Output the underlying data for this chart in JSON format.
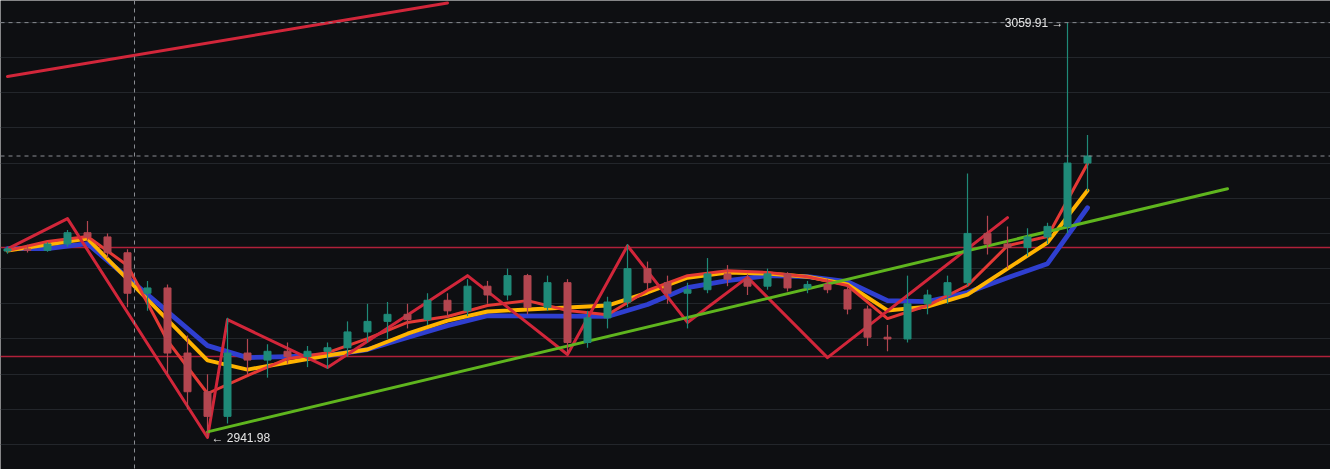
{
  "chart_data": {
    "type": "candlestick",
    "categories": [
      null,
      null,
      null,
      null,
      null,
      null,
      null,
      null,
      null,
      null,
      null,
      null,
      null,
      null,
      null,
      null,
      null,
      null,
      null,
      null,
      null,
      null,
      null,
      null,
      null,
      null,
      null,
      null,
      null,
      null,
      null,
      null,
      null,
      null,
      null,
      null,
      null,
      null,
      null,
      null,
      null,
      null,
      null,
      null,
      null,
      null,
      null,
      null,
      null,
      null,
      null,
      null,
      null,
      null,
      null,
      null,
      null,
      null,
      null,
      null,
      null,
      null
    ],
    "ohlc": [
      [
        2995.0,
        2996.2,
        2994.2,
        2995.6
      ],
      [
        2995.6,
        2996.8,
        2994.6,
        2995.2
      ],
      [
        2995.2,
        2997.5,
        2994.8,
        2997.0
      ],
      [
        2997.0,
        3001.0,
        2996.2,
        3000.2
      ],
      [
        3000.2,
        3003.5,
        2998.0,
        2999.0
      ],
      [
        2999.0,
        3000.0,
        2993.0,
        2994.5
      ],
      [
        2994.5,
        2995.5,
        2979.0,
        2983.0
      ],
      [
        2983.0,
        2986.5,
        2978.0,
        2984.5
      ],
      [
        2984.5,
        2985.5,
        2960.0,
        2966.0
      ],
      [
        2966.0,
        2971.0,
        2950.0,
        2955.0
      ],
      [
        2955.0,
        2960.0,
        2941.98,
        2948.0
      ],
      [
        2948.0,
        2976.0,
        2946.0,
        2966.0
      ],
      [
        2966.0,
        2970.0,
        2960.0,
        2964.0
      ],
      [
        2964.0,
        2968.5,
        2959.0,
        2966.5
      ],
      [
        2966.5,
        2969.0,
        2963.0,
        2965.0
      ],
      [
        2965.0,
        2968.0,
        2962.0,
        2966.5
      ],
      [
        2966.5,
        2969.0,
        2961.5,
        2967.5
      ],
      [
        2967.5,
        2975.0,
        2965.0,
        2972.0
      ],
      [
        2972.0,
        2980.0,
        2969.0,
        2975.0
      ],
      [
        2975.0,
        2980.5,
        2970.0,
        2977.0
      ],
      [
        2977.0,
        2980.0,
        2973.0,
        2975.5
      ],
      [
        2975.5,
        2983.0,
        2974.0,
        2981.0
      ],
      [
        2981.0,
        2983.0,
        2976.0,
        2978.0
      ],
      [
        2978.0,
        2987.0,
        2976.5,
        2985.0
      ],
      [
        2985.0,
        2986.5,
        2980.0,
        2982.5
      ],
      [
        2982.5,
        2990.0,
        2981.0,
        2988.0
      ],
      [
        2988.0,
        2988.5,
        2977.0,
        2979.0
      ],
      [
        2979.0,
        2988.0,
        2978.0,
        2986.0
      ],
      [
        2986.0,
        2987.0,
        2966.0,
        2969.0
      ],
      [
        2969.0,
        2978.0,
        2967.5,
        2976.0
      ],
      [
        2976.0,
        2982.0,
        2973.0,
        2980.5
      ],
      [
        2980.5,
        2997.0,
        2979.0,
        2990.0
      ],
      [
        2990.0,
        2992.0,
        2984.0,
        2986.0
      ],
      [
        2986.0,
        2988.0,
        2980.0,
        2983.0
      ],
      [
        2983.0,
        2986.0,
        2973.0,
        2984.0
      ],
      [
        2984.0,
        2993.0,
        2983.0,
        2988.5
      ],
      [
        2988.5,
        2991.0,
        2985.0,
        2987.0
      ],
      [
        2987.0,
        2988.5,
        2982.5,
        2985.0
      ],
      [
        2985.0,
        2990.0,
        2984.0,
        2988.5
      ],
      [
        2988.5,
        2989.0,
        2983.5,
        2984.5
      ],
      [
        2984.5,
        2986.5,
        2983.0,
        2985.5
      ],
      [
        2985.5,
        2987.0,
        2983.0,
        2984.0
      ],
      [
        2984.0,
        2985.0,
        2977.0,
        2978.5
      ],
      [
        2978.5,
        2979.5,
        2968.0,
        2970.5
      ],
      [
        2970.5,
        2974.0,
        2966.5,
        2970.0
      ],
      [
        2970.0,
        2988.0,
        2969.0,
        2980.0
      ],
      [
        2980.0,
        2984.0,
        2977.0,
        2982.5
      ],
      [
        2982.5,
        2988.0,
        2980.0,
        2986.0
      ],
      [
        2986.0,
        3017.0,
        2985.0,
        3000.0
      ],
      [
        3000.0,
        3005.0,
        2994.0,
        2997.0
      ],
      [
        2997.0,
        3002.0,
        2990.0,
        2996.0
      ],
      [
        2996.0,
        3001.5,
        2993.5,
        2999.0
      ],
      [
        2999.0,
        3003.0,
        2997.0,
        3002.0
      ],
      [
        3002.0,
        3059.91,
        3000.0,
        3020.0
      ],
      [
        3020.0,
        3028.0,
        3012.0,
        3022.0
      ],
      null,
      null,
      null,
      null,
      null,
      null,
      null
    ],
    "series": [
      {
        "type": "line",
        "color": "#2f3fd0",
        "values": [
          2995.7,
          null,
          2995.7,
          null,
          2997.1,
          null,
          null,
          null,
          null,
          null,
          2968.1,
          null,
          2964.7,
          null,
          2965.0,
          null,
          2965.3,
          null,
          2967.0,
          null,
          2970.4,
          null,
          2973.8,
          null,
          2976.6,
          null,
          null,
          null,
          null,
          null,
          2976.4,
          null,
          2979.8,
          null,
          2984.6,
          null,
          2986.6,
          null,
          2988.0,
          null,
          2987.7,
          null,
          2986.3,
          null,
          2980.9,
          null,
          2980.6,
          null,
          2983.2,
          null,
          2987.4,
          null,
          2991.4,
          null,
          3007.3,
          null,
          null,
          null,
          null,
          null,
          null,
          null
        ]
      },
      {
        "type": "line",
        "color": "#ffb300",
        "values": [
          2995.1,
          null,
          2996.8,
          null,
          2998.5,
          null,
          null,
          null,
          null,
          null,
          2963.9,
          null,
          2961.3,
          null,
          2963.3,
          null,
          2965.3,
          null,
          2967.0,
          null,
          2971.5,
          null,
          2975.2,
          null,
          2977.8,
          null,
          null,
          null,
          null,
          null,
          2979.5,
          null,
          2983.2,
          null,
          2987.4,
          null,
          2988.9,
          null,
          2988.6,
          null,
          2987.7,
          null,
          2985.5,
          null,
          2978.1,
          null,
          2979.2,
          null,
          2982.6,
          null,
          2990.0,
          null,
          2997.4,
          null,
          3012.2,
          null,
          null,
          null,
          null,
          null,
          null,
          null
        ]
      },
      {
        "type": "line",
        "color": "#e53935",
        "values": [
          2995.1,
          null,
          2997.7,
          null,
          2999.1,
          null,
          2990.9,
          null,
          2969.5,
          null,
          2954.5,
          null,
          2959.6,
          null,
          2964.4,
          null,
          2966.1,
          null,
          2970.1,
          null,
          2974.7,
          null,
          2976.4,
          null,
          2979.5,
          null,
          2980.9,
          null,
          2978.1,
          null,
          2976.9,
          null,
          2983.8,
          null,
          2988.0,
          null,
          2989.4,
          null,
          2988.9,
          null,
          2987.7,
          null,
          2985.2,
          null,
          2975.8,
          null,
          2979.5,
          null,
          2985.2,
          null,
          2996.5,
          null,
          2999.1,
          null,
          3019.8,
          null,
          null,
          null,
          null,
          null,
          null,
          null
        ]
      },
      {
        "type": "line",
        "color": "#d2263a",
        "values": [
          2995.6,
          null,
          null,
          3004.2,
          null,
          null,
          null,
          null,
          null,
          null,
          2942.0,
          2975.5,
          null,
          null,
          null,
          null,
          2961.9,
          null,
          null,
          null,
          null,
          null,
          null,
          2988.0,
          null,
          null,
          null,
          null,
          2965.6,
          null,
          null,
          2996.5,
          null,
          null,
          2974.7,
          null,
          null,
          2987.5,
          null,
          null,
          null,
          2964.7,
          null,
          null,
          null,
          null,
          null,
          null,
          null,
          null,
          3004.5,
          null,
          null,
          null,
          null,
          null,
          null,
          null,
          null,
          null,
          null,
          null
        ]
      },
      {
        "type": "line",
        "color": "#5fb51e",
        "values": [
          null,
          null,
          null,
          null,
          null,
          null,
          null,
          null,
          null,
          null,
          2943.6,
          null,
          null,
          null,
          null,
          null,
          null,
          null,
          null,
          null,
          null,
          null,
          null,
          null,
          null,
          null,
          null,
          null,
          null,
          null,
          null,
          null,
          null,
          null,
          null,
          null,
          null,
          null,
          null,
          null,
          null,
          null,
          null,
          null,
          null,
          null,
          null,
          null,
          null,
          null,
          null,
          null,
          null,
          null,
          null,
          null,
          null,
          null,
          null,
          null,
          null,
          3012.7
        ]
      },
      {
        "type": "line",
        "color": "#d2263a",
        "values": [
          3044.6,
          null,
          null,
          null,
          null,
          null,
          null,
          null,
          null,
          null,
          null,
          null,
          null,
          null,
          null,
          null,
          null,
          null,
          null,
          null,
          null,
          null,
          3065.5,
          null,
          null,
          null,
          null,
          null,
          null,
          null,
          null,
          null,
          null,
          null,
          null,
          null,
          null,
          null,
          null,
          null,
          null,
          null,
          null,
          null,
          null,
          null,
          null,
          null,
          null,
          null,
          null,
          null,
          null,
          null,
          null,
          null,
          null,
          null,
          null,
          null,
          null,
          null
        ]
      }
    ],
    "ref_lines": [
      {
        "axis": "y",
        "value": 2996.0,
        "color": "#b0203a",
        "line_style": "solid"
      },
      {
        "axis": "y",
        "value": 2965.0,
        "color": "#b0203a",
        "line_style": "solid"
      }
    ],
    "annotations": [
      "3059.91 →",
      "← 2941.98"
    ],
    "ylim": [
      2932.9,
      3066.2
    ],
    "yticks": [
      {
        "value": 2940,
        "label": null
      },
      {
        "value": 2950,
        "label": null
      },
      {
        "value": 2960,
        "label": null
      },
      {
        "value": 2970,
        "label": null
      },
      {
        "value": 2980,
        "label": null
      },
      {
        "value": 2990,
        "label": null
      },
      {
        "value": 3000,
        "label": null
      },
      {
        "value": 3010,
        "label": null
      },
      {
        "value": 3020,
        "label": null
      },
      {
        "value": 3030,
        "label": null
      },
      {
        "value": 3040,
        "label": null
      },
      {
        "value": 3050,
        "label": null
      },
      {
        "value": 3060,
        "label": null
      }
    ],
    "grid": "y",
    "tick_labels": false
  }
}
